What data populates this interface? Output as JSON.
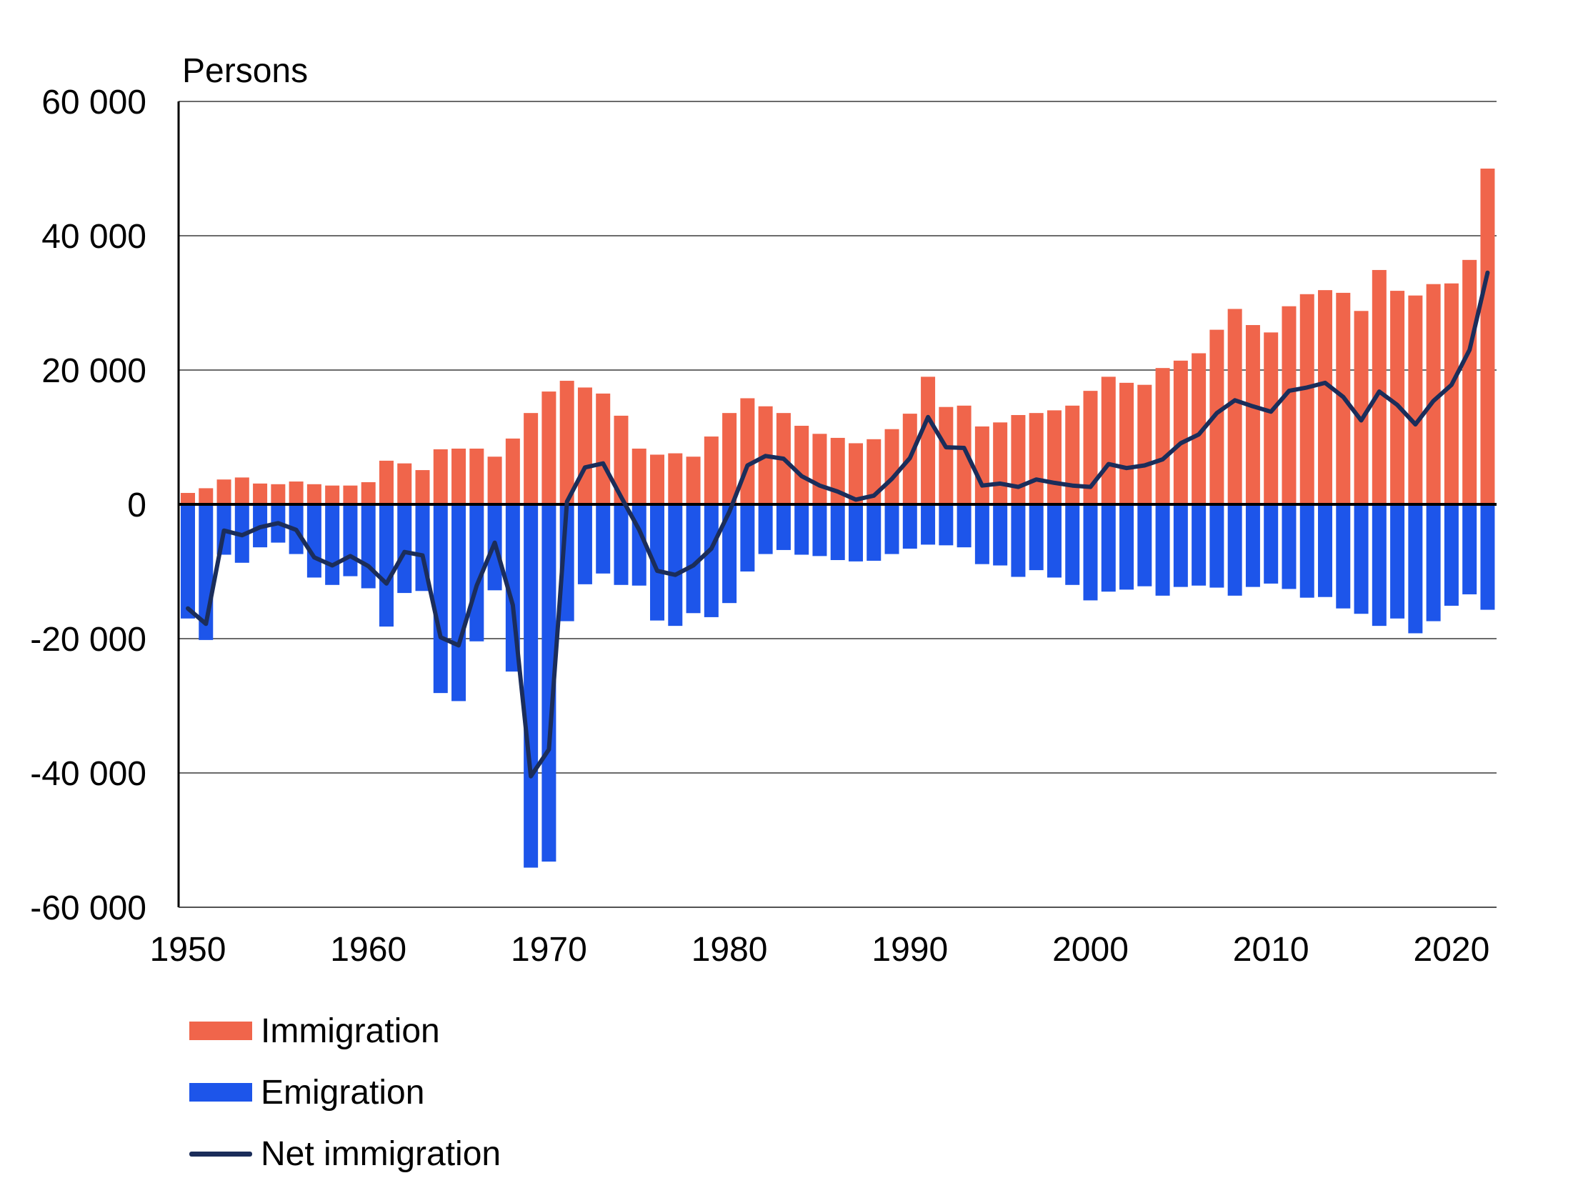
{
  "colors": {
    "immigration": "#f0654b",
    "emigration": "#1d55ea",
    "net": "#1b2d5a",
    "grid": "#3a3a3a"
  },
  "chart_data": {
    "type": "bar",
    "ylabel": "Persons",
    "ylim": [
      -60000,
      60000
    ],
    "yticks": [
      60000,
      40000,
      20000,
      0,
      -20000,
      -40000,
      -60000
    ],
    "yticklabels": [
      "60 000",
      "40 000",
      "20 000",
      "0",
      "-20 000",
      "-40 000",
      "-60 000"
    ],
    "xticks": [
      1950,
      1960,
      1970,
      1980,
      1990,
      2000,
      2010,
      2020
    ],
    "xticklabels": [
      "1950",
      "1960",
      "1970",
      "1980",
      "1990",
      "2000",
      "2010",
      "2020"
    ],
    "grid": true,
    "legend_position": "bottom-left",
    "years": [
      1950,
      1951,
      1952,
      1953,
      1954,
      1955,
      1956,
      1957,
      1958,
      1959,
      1960,
      1961,
      1962,
      1963,
      1964,
      1965,
      1966,
      1967,
      1968,
      1969,
      1970,
      1971,
      1972,
      1973,
      1974,
      1975,
      1976,
      1977,
      1978,
      1979,
      1980,
      1981,
      1982,
      1983,
      1984,
      1985,
      1986,
      1987,
      1988,
      1989,
      1990,
      1991,
      1992,
      1993,
      1994,
      1995,
      1996,
      1997,
      1998,
      1999,
      2000,
      2001,
      2002,
      2003,
      2004,
      2005,
      2006,
      2007,
      2008,
      2009,
      2010,
      2011,
      2012,
      2013,
      2014,
      2015,
      2016,
      2017,
      2018,
      2019,
      2020,
      2021,
      2022
    ],
    "series": [
      {
        "name": "Immigration",
        "type": "bar",
        "values": [
          1700,
          2400,
          3700,
          4000,
          3100,
          3000,
          3400,
          3000,
          2800,
          2800,
          3300,
          6500,
          6100,
          5100,
          8200,
          8300,
          8300,
          7100,
          9800,
          13600,
          16800,
          18400,
          17400,
          16500,
          13200,
          8300,
          7400,
          7600,
          7100,
          10100,
          13600,
          15800,
          14600,
          13600,
          11700,
          10500,
          9900,
          9100,
          9700,
          11200,
          13500,
          19000,
          14500,
          14700,
          11600,
          12200,
          13300,
          13600,
          14000,
          14700,
          16900,
          19000,
          18100,
          17800,
          20300,
          21400,
          22500,
          26000,
          29100,
          26700,
          25600,
          29500,
          31300,
          31900,
          31500,
          28800,
          34900,
          31800,
          31100,
          32800,
          32900,
          36400,
          50000
        ]
      },
      {
        "name": "Emigration",
        "type": "bar",
        "values": [
          -17000,
          -20200,
          -7500,
          -8700,
          -6400,
          -5700,
          -7400,
          -10900,
          -12000,
          -10700,
          -12500,
          -18200,
          -13200,
          -12900,
          -28100,
          -29300,
          -20400,
          -12800,
          -24900,
          -54100,
          -53200,
          -17400,
          -11900,
          -10300,
          -12000,
          -12100,
          -17300,
          -18100,
          -16200,
          -16800,
          -14700,
          -10000,
          -7400,
          -6800,
          -7500,
          -7700,
          -8300,
          -8500,
          -8400,
          -7400,
          -6600,
          -6000,
          -6100,
          -6400,
          -8900,
          -9100,
          -10800,
          -9800,
          -10900,
          -12000,
          -14300,
          -13000,
          -12700,
          -12200,
          -13600,
          -12300,
          -12100,
          -12400,
          -13600,
          -12300,
          -11800,
          -12600,
          -13900,
          -13800,
          -15500,
          -16300,
          -18100,
          -17000,
          -19200,
          -17400,
          -15100,
          -13400,
          -15700
        ]
      },
      {
        "name": "Net immigration",
        "type": "line",
        "values": [
          -15500,
          -17800,
          -3900,
          -4600,
          -3400,
          -2800,
          -3800,
          -7900,
          -9100,
          -7700,
          -9200,
          -11800,
          -7100,
          -7600,
          -19800,
          -21000,
          -12100,
          -5700,
          -15000,
          -40500,
          -36500,
          400,
          5500,
          6100,
          1100,
          -3800,
          -9900,
          -10500,
          -9100,
          -6600,
          -1100,
          5800,
          7200,
          6800,
          4200,
          2800,
          1900,
          700,
          1300,
          3800,
          6900,
          13000,
          8500,
          8400,
          2800,
          3100,
          2600,
          3700,
          3200,
          2800,
          2600,
          6000,
          5400,
          5800,
          6700,
          9100,
          10400,
          13600,
          15500,
          14600,
          13800,
          16900,
          17400,
          18100,
          16000,
          12500,
          16800,
          14800,
          11900,
          15400,
          17800,
          23000,
          34500
        ]
      }
    ]
  }
}
